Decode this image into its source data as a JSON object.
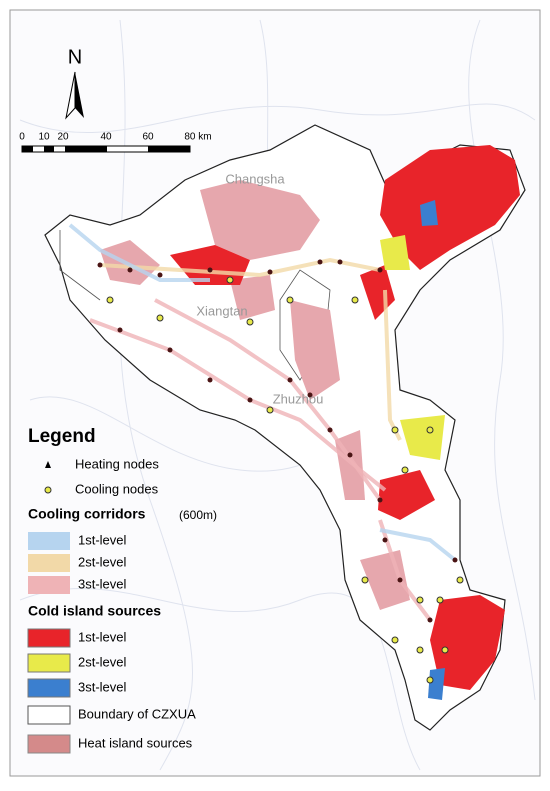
{
  "north_arrow": {
    "label": "N"
  },
  "scale_bar": {
    "labels": [
      "0",
      "10",
      "20",
      "40",
      "60",
      "80 km"
    ]
  },
  "places": [
    "Changsha",
    "Xiangtan",
    "Zhuzhou"
  ],
  "legend": {
    "title": "Legend",
    "nodes": [
      "Heating nodes",
      "Cooling nodes"
    ],
    "corridors": {
      "title": "Cooling corridors",
      "note": "(600m)",
      "items": [
        "1st-level",
        "2st-level",
        "3st-level"
      ]
    },
    "cold_sources": {
      "title": "Cold island sources",
      "items": [
        "1st-level",
        "2st-level",
        "3st-level"
      ]
    },
    "others": [
      "Boundary of CZXUA",
      "Heat island sources"
    ]
  }
}
